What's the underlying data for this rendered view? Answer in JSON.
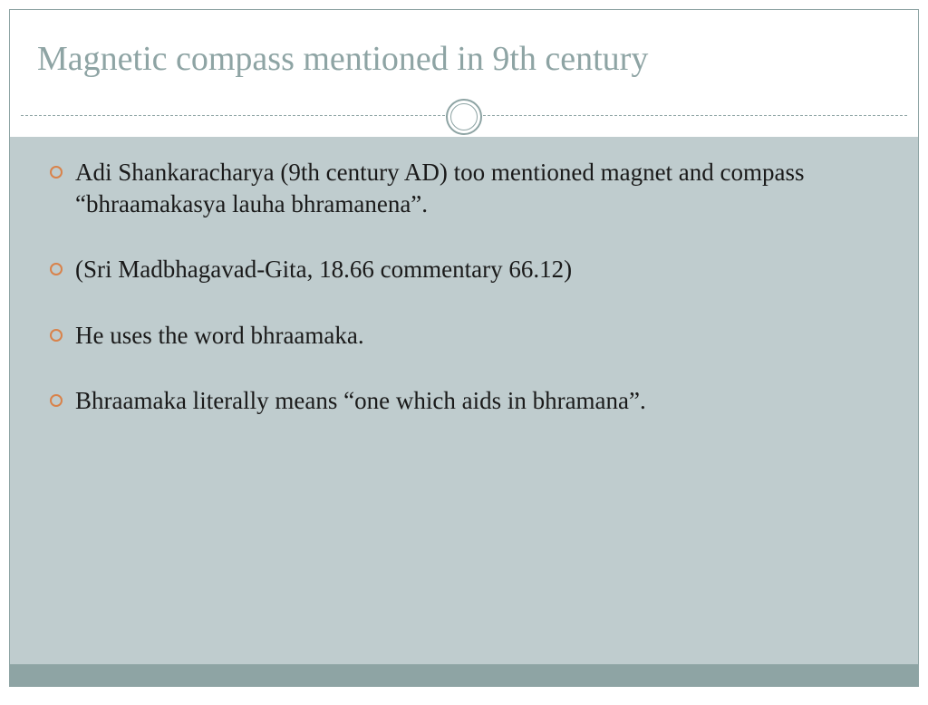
{
  "slide": {
    "title": "Magnetic compass mentioned in 9th  century",
    "bullets": [
      "Adi Shankaracharya (9th century AD)     too mentioned magnet and compass “bhraamakasya lauha bhramanena”.",
      "(Sri Madbhagavad-Gita, 18.66 commentary 66.12)",
      "He uses the word bhraamaka.",
      "Bhraamaka literally  means “one which aids in bhramana”."
    ]
  },
  "style": {
    "title_color": "#8ea4a4",
    "title_fontsize": 38,
    "body_fontsize": 27,
    "body_color": "#1a1a1a",
    "bullet_ring_color": "#d9824a",
    "content_bg": "#bfccce",
    "border_color": "#8ea4a4",
    "bottom_bar_color": "#8ea4a4",
    "divider_dash_color": "#8ea4a4",
    "circle_stroke": "#8ea4a4",
    "slide_width": 1024,
    "slide_height": 768
  }
}
